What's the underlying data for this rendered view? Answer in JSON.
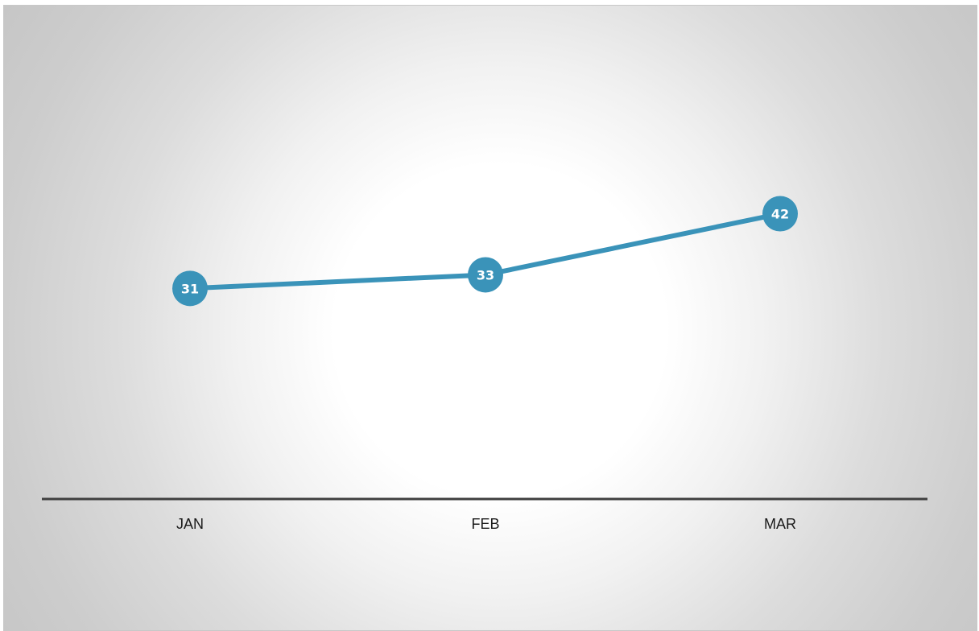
{
  "chart_data": {
    "type": "line",
    "categories": [
      "JAN",
      "FEB",
      "MAR"
    ],
    "series": [
      {
        "values": [
          31,
          33,
          42
        ]
      }
    ],
    "title": "",
    "xlabel": "",
    "ylabel": "",
    "ylim": [
      0,
      50
    ],
    "grid": false,
    "legend": "none",
    "colors": {
      "line": "#3a93b9",
      "marker": "#3a93b9",
      "marker_text": "#ffffff",
      "axis": "#3f3f3f"
    }
  }
}
